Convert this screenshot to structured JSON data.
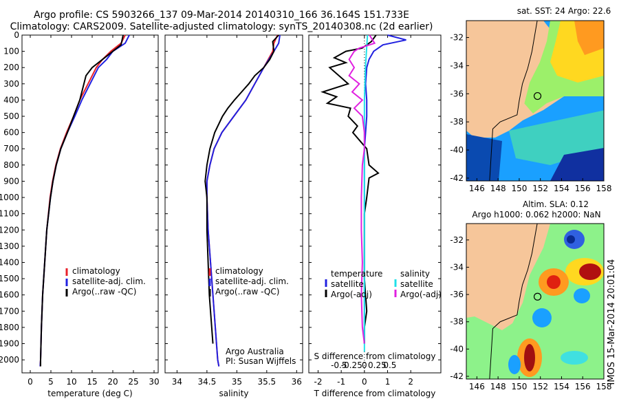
{
  "title_line1": "Argo profile: CS 5903266_137 09-Mar-2014 20140310_166 36.164S 151.733E",
  "title_line2": "Climatology: CARS2009. Satellite-adjusted climatology: synTS_20140308.nc (2d earlier)",
  "depth_ticks": [
    "0",
    "100",
    "200",
    "300",
    "400",
    "500",
    "600",
    "700",
    "800",
    "900",
    "1000",
    "1100",
    "1200",
    "1300",
    "1400",
    "1500",
    "1600",
    "1700",
    "1800",
    "1900",
    "2000"
  ],
  "colors": {
    "climatology": "#e8202a",
    "satellite": "#2020e0",
    "argo": "#000000",
    "sal_sat": "#20e0e8",
    "sal_argo": "#e020e0"
  },
  "chart_data": [
    {
      "type": "line",
      "name": "temperature",
      "xlabel": "temperature (deg C)",
      "xlim": [
        -2,
        31
      ],
      "ylim": [
        2080,
        0
      ],
      "xticks": [
        "0",
        "5",
        "10",
        "15",
        "20",
        "25",
        "30"
      ],
      "legend": [
        "climatology",
        "satellite-adj. clim.",
        "Argo(..raw -QC)"
      ],
      "series": [
        {
          "name": "climatology",
          "depth": [
            0,
            50,
            100,
            150,
            200,
            300,
            400,
            500,
            600,
            700,
            800,
            900,
            1000,
            1200,
            1400,
            1600,
            1800,
            2000,
            2040
          ],
          "values": [
            23,
            22,
            19.5,
            17.5,
            16,
            14,
            12,
            10.5,
            8.8,
            7.3,
            6.2,
            5.4,
            4.8,
            4,
            3.5,
            3,
            2.7,
            2.5,
            2.4
          ]
        },
        {
          "name": "satellite-adj. clim.",
          "depth": [
            0,
            50,
            100,
            150,
            200,
            300,
            400,
            500,
            600,
            700,
            800,
            900,
            1000,
            1200,
            1400,
            1600,
            1800,
            2000,
            2040
          ],
          "values": [
            24,
            23,
            20,
            18.5,
            16.5,
            14.5,
            12.5,
            10.8,
            9,
            7.4,
            6.3,
            5.5,
            4.9,
            4,
            3.5,
            3,
            2.7,
            2.5,
            2.4
          ]
        },
        {
          "name": "Argo(..raw -QC)",
          "depth": [
            0,
            60,
            100,
            150,
            200,
            250,
            300,
            400,
            500,
            600,
            700,
            800,
            900,
            1000,
            1200,
            1400,
            1600,
            1800,
            2000,
            2040
          ],
          "values": [
            22.5,
            22,
            20,
            17.5,
            15,
            13.5,
            13,
            12,
            10.5,
            9,
            7.4,
            6.3,
            5.5,
            4.9,
            4,
            3.5,
            3,
            2.7,
            2.5,
            2.5
          ]
        }
      ]
    },
    {
      "type": "line",
      "name": "salinity",
      "xlabel": "salinity",
      "xlim": [
        33.8,
        36.1
      ],
      "ylim": [
        2080,
        0
      ],
      "xticks": [
        "34",
        "34.5",
        "35",
        "35.5",
        "36"
      ],
      "legend": [
        "climatology",
        "satellite-adj. clim.",
        "Argo(..raw -QC)"
      ],
      "annotation": [
        "Argo Australia",
        "PI: Susan Wijffels"
      ],
      "series": [
        {
          "name": "climatology",
          "depth": [
            0,
            50,
            100,
            200,
            300,
            400,
            500,
            600,
            700,
            800,
            900,
            1000,
            1200,
            1400,
            1600,
            1800,
            2000,
            2040
          ],
          "values": [
            35.68,
            35.62,
            35.6,
            35.45,
            35.3,
            35.15,
            34.95,
            34.75,
            34.62,
            34.55,
            34.5,
            34.5,
            34.52,
            34.56,
            34.6,
            34.64,
            34.68,
            34.7
          ]
        },
        {
          "name": "satellite-adj. clim.",
          "depth": [
            0,
            50,
            100,
            200,
            300,
            400,
            500,
            600,
            700,
            800,
            900,
            1000,
            1200,
            1400,
            1600,
            1800,
            2000,
            2040
          ],
          "values": [
            35.72,
            35.7,
            35.62,
            35.45,
            35.3,
            35.15,
            34.95,
            34.75,
            34.62,
            34.55,
            34.5,
            34.5,
            34.52,
            34.56,
            34.6,
            34.64,
            34.68,
            34.7
          ]
        },
        {
          "name": "Argo(..raw -QC)",
          "depth": [
            0,
            40,
            100,
            150,
            200,
            250,
            300,
            350,
            400,
            450,
            500,
            600,
            700,
            800,
            900,
            1000,
            1200,
            1400,
            1600,
            1800,
            1900
          ],
          "values": [
            35.7,
            35.6,
            35.62,
            35.55,
            35.45,
            35.3,
            35.2,
            35.08,
            34.96,
            34.85,
            34.76,
            34.63,
            34.55,
            34.5,
            34.47,
            34.5,
            34.5,
            34.52,
            34.54,
            34.58,
            34.6
          ]
        }
      ]
    },
    {
      "type": "line",
      "name": "difference",
      "xlabel": "T difference from climatology",
      "xlabel_top": "S difference from climatology",
      "xlim": [
        -2.4,
        3.3
      ],
      "ylim": [
        2080,
        0
      ],
      "xticks": [
        "-2",
        "-1",
        "0",
        "1",
        "2"
      ],
      "sticks": [
        "-0.5",
        "-0.25",
        "0",
        "0.25",
        "0.5"
      ],
      "legend_t": [
        "temperature",
        "satellite",
        "Argo(-adj)"
      ],
      "legend_s": [
        "salinity",
        "satellite",
        "Argo(-adj)"
      ],
      "series": [
        {
          "name": "temperature satellite",
          "depth": [
            0,
            30,
            60,
            100,
            150,
            200,
            300,
            400,
            500,
            600,
            700,
            800,
            1000,
            1200,
            1400,
            1600,
            1800,
            1900
          ],
          "values": [
            1,
            1.8,
            0.8,
            0.4,
            0.2,
            0.1,
            0.05,
            0.1,
            0.1,
            0.05,
            0,
            0,
            0,
            0,
            0,
            0,
            0,
            0
          ]
        },
        {
          "name": "temperature Argo(-adj)",
          "depth": [
            0,
            40,
            80,
            100,
            140,
            170,
            200,
            250,
            300,
            350,
            380,
            420,
            450,
            500,
            560,
            600,
            700,
            800,
            850,
            880,
            1000,
            1100,
            1200,
            1500,
            1700,
            1750,
            1800,
            1900
          ],
          "values": [
            0.5,
            0.3,
            -0.1,
            -0.8,
            -1.3,
            -0.8,
            -1.5,
            -1.1,
            -0.7,
            -1.8,
            -1.2,
            -1.6,
            -0.6,
            -0.7,
            -0.3,
            -0.5,
            0.1,
            0.2,
            0.6,
            0.2,
            0.1,
            0,
            0,
            0,
            0.1,
            0.05,
            0,
            0
          ]
        },
        {
          "name": "salinity satellite",
          "depth": [
            0,
            100,
            200,
            400,
            600,
            800,
            1000,
            1200,
            1400,
            1600,
            1800,
            1950
          ],
          "values": [
            0.03,
            0.02,
            0.01,
            0,
            0,
            0,
            0,
            0,
            0,
            0,
            0,
            0
          ]
        },
        {
          "name": "salinity Argo(-adj)",
          "depth": [
            0,
            50,
            80,
            100,
            150,
            200,
            250,
            300,
            350,
            400,
            450,
            500,
            600,
            700,
            800,
            1000,
            1200,
            1400,
            1600,
            1800,
            1900
          ],
          "values": [
            0.05,
            0.1,
            -0.05,
            -0.1,
            -0.15,
            -0.1,
            -0.15,
            -0.05,
            -0.12,
            -0.02,
            -0.1,
            -0.02,
            0,
            0,
            -0.02,
            -0.03,
            -0.03,
            -0.02,
            -0.03,
            -0.02,
            0
          ]
        }
      ]
    }
  ],
  "maps": {
    "xticks": [
      "146",
      "148",
      "150",
      "152",
      "154",
      "156",
      "158"
    ],
    "yticks": [
      "-32",
      "-34",
      "-36",
      "-38",
      "-40",
      "-42"
    ],
    "sst_title": "sat. SST: 24 Argo: 22.6",
    "sla_title1": "Altim. SLA: 0.12",
    "sla_title2": "Argo h1000: 0.062 h2000: NaN",
    "credit": "IMOS 15-Mar-2014 20:01:04",
    "profile_lon": 151.73,
    "profile_lat": -36.16
  }
}
